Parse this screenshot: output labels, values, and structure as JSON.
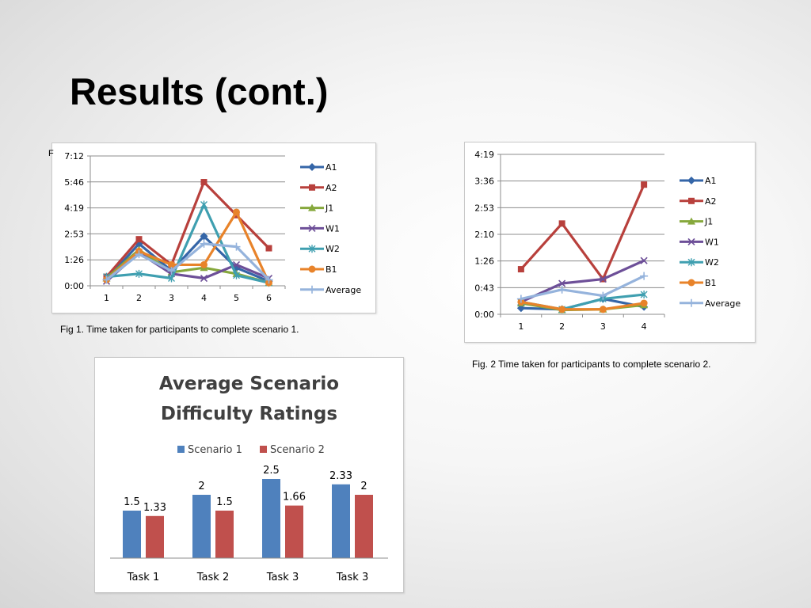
{
  "slide": {
    "title": "Results (cont.)"
  },
  "figures": {
    "fig1_caption": "Fig 1. Time taken for participants to complete scenario 1.",
    "fig2_caption": "Fig. 2 Time taken for participants to complete scenario 2.",
    "fig1_stray_char": "F"
  },
  "chart_data": [
    {
      "id": "fig1",
      "type": "line",
      "x": [
        1,
        2,
        3,
        4,
        5,
        6
      ],
      "y_ticks": [
        "0:00",
        "1:26",
        "2:53",
        "4:19",
        "5:46",
        "7:12"
      ],
      "ylim": [
        0,
        432
      ],
      "y_unit": "seconds (m:ss)",
      "grid": true,
      "legend_position": "right",
      "series": [
        {
          "name": "A1",
          "color": "#3566a8",
          "marker": "diamond",
          "values": [
            20,
            140,
            50,
            165,
            60,
            15
          ]
        },
        {
          "name": "A2",
          "color": "#b8403c",
          "marker": "square",
          "values": [
            30,
            155,
            70,
            345,
            235,
            125
          ]
        },
        {
          "name": "J1",
          "color": "#86a83c",
          "marker": "triangle",
          "values": [
            25,
            120,
            45,
            60,
            40,
            10
          ]
        },
        {
          "name": "W1",
          "color": "#6d4f98",
          "marker": "x",
          "values": [
            15,
            110,
            40,
            25,
            70,
            25
          ]
        },
        {
          "name": "W2",
          "color": "#3f9fb0",
          "marker": "star",
          "values": [
            30,
            40,
            25,
            270,
            35,
            10
          ]
        },
        {
          "name": "B1",
          "color": "#e8832a",
          "marker": "circle",
          "values": [
            20,
            115,
            70,
            70,
            245,
            10
          ]
        },
        {
          "name": "Average",
          "color": "#95b3dc",
          "marker": "plus",
          "values": [
            20,
            105,
            50,
            140,
            130,
            20
          ]
        }
      ]
    },
    {
      "id": "fig2",
      "type": "line",
      "x": [
        1,
        2,
        3,
        4
      ],
      "y_ticks": [
        "0:00",
        "0:43",
        "1:26",
        "2:10",
        "2:53",
        "3:36",
        "4:19"
      ],
      "ylim": [
        0,
        259
      ],
      "y_unit": "seconds (m:ss)",
      "grid": true,
      "legend_position": "right",
      "series": [
        {
          "name": "A1",
          "color": "#3566a8",
          "marker": "diamond",
          "values": [
            10,
            8,
            25,
            12
          ]
        },
        {
          "name": "A2",
          "color": "#b8403c",
          "marker": "square",
          "values": [
            73,
            147,
            57,
            210
          ]
        },
        {
          "name": "J1",
          "color": "#86a83c",
          "marker": "triangle",
          "values": [
            18,
            7,
            8,
            15
          ]
        },
        {
          "name": "W1",
          "color": "#6d4f98",
          "marker": "x",
          "values": [
            20,
            50,
            57,
            87
          ]
        },
        {
          "name": "W2",
          "color": "#3f9fb0",
          "marker": "star",
          "values": [
            20,
            8,
            25,
            32
          ]
        },
        {
          "name": "B1",
          "color": "#e8832a",
          "marker": "circle",
          "values": [
            20,
            8,
            8,
            18
          ]
        },
        {
          "name": "Average",
          "color": "#95b3dc",
          "marker": "plus",
          "values": [
            25,
            40,
            30,
            62
          ]
        }
      ]
    },
    {
      "id": "fig3",
      "type": "bar",
      "title": "Average Scenario Difficulty Ratings",
      "categories": [
        "Task 1",
        "Task 2",
        "Task 3",
        "Task 3"
      ],
      "ylim": [
        0,
        3
      ],
      "grid": false,
      "legend_position": "top",
      "series": [
        {
          "name": "Scenario 1",
          "color": "#4f81bd",
          "values": [
            1.5,
            2,
            2.5,
            2.33
          ],
          "labels": [
            "1.5",
            "2",
            "2.5",
            "2.33"
          ]
        },
        {
          "name": "Scenario 2",
          "color": "#c0504d",
          "values": [
            1.33,
            1.5,
            1.66,
            2
          ],
          "labels": [
            "1.33",
            "1.5",
            "1.66",
            "2"
          ]
        }
      ]
    }
  ]
}
